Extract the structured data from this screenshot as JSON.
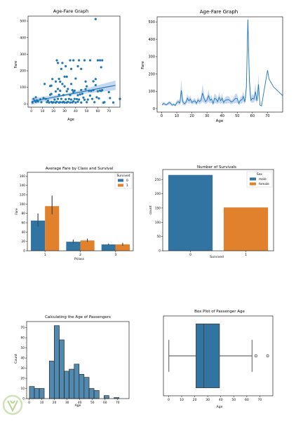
{
  "colors": {
    "blue": "#1f77b4",
    "blue_fill": "#3274a1",
    "orange": "#e1812c",
    "ci": "#aec7e8"
  },
  "logo": {
    "name": "watermark-logo",
    "text": ""
  },
  "chart_data": [
    {
      "type": "scatter",
      "title": "Age-Fare Graph",
      "xlabel": "Age",
      "ylabel": "Fare",
      "xlim": [
        -3,
        80
      ],
      "ylim": [
        -20,
        530
      ],
      "xticks": [
        0,
        10,
        20,
        30,
        40,
        50,
        60,
        70
      ],
      "yticks": [
        0,
        100,
        200,
        300,
        400,
        500
      ],
      "regression": {
        "x": [
          0,
          76
        ],
        "y": [
          14,
          112
        ]
      },
      "points": [
        [
          1,
          8
        ],
        [
          2,
          30
        ],
        [
          3,
          18
        ],
        [
          4,
          12
        ],
        [
          4,
          40
        ],
        [
          5,
          22
        ],
        [
          6,
          15
        ],
        [
          8,
          27
        ],
        [
          9,
          10
        ],
        [
          11,
          35
        ],
        [
          12,
          120
        ],
        [
          13,
          30
        ],
        [
          14,
          10
        ],
        [
          15,
          20
        ],
        [
          16,
          8
        ],
        [
          17,
          55
        ],
        [
          18,
          12
        ],
        [
          18,
          60
        ],
        [
          19,
          7
        ],
        [
          19,
          150
        ],
        [
          20,
          10
        ],
        [
          21,
          26
        ],
        [
          22,
          8
        ],
        [
          22,
          75
        ],
        [
          23,
          13
        ],
        [
          23,
          263
        ],
        [
          24,
          30
        ],
        [
          24,
          90
        ],
        [
          25,
          8
        ],
        [
          25,
          55
        ],
        [
          25,
          151
        ],
        [
          26,
          10
        ],
        [
          26,
          79
        ],
        [
          27,
          30
        ],
        [
          27,
          211
        ],
        [
          28,
          9
        ],
        [
          28,
          120
        ],
        [
          29,
          13
        ],
        [
          29,
          53
        ],
        [
          30,
          8
        ],
        [
          30,
          106
        ],
        [
          31,
          27
        ],
        [
          31,
          227
        ],
        [
          32,
          8
        ],
        [
          32,
          76
        ],
        [
          33,
          12
        ],
        [
          33,
          90
        ],
        [
          34,
          30
        ],
        [
          35,
          8
        ],
        [
          35,
          53
        ],
        [
          35,
          263
        ],
        [
          36,
          26
        ],
        [
          36,
          120
        ],
        [
          37,
          9
        ],
        [
          37,
          83
        ],
        [
          38,
          15
        ],
        [
          38,
          71
        ],
        [
          39,
          30
        ],
        [
          39,
          80
        ],
        [
          40,
          8
        ],
        [
          40,
          153
        ],
        [
          41,
          29
        ],
        [
          42,
          13
        ],
        [
          42,
          52
        ],
        [
          43,
          26
        ],
        [
          44,
          57
        ],
        [
          45,
          8
        ],
        [
          45,
          84
        ],
        [
          46,
          61
        ],
        [
          47,
          38
        ],
        [
          48,
          25
        ],
        [
          48,
          263
        ],
        [
          49,
          89
        ],
        [
          50,
          10
        ],
        [
          50,
          106
        ],
        [
          51,
          26
        ],
        [
          52,
          79
        ],
        [
          53,
          50
        ],
        [
          54,
          78
        ],
        [
          55,
          30
        ],
        [
          56,
          83
        ],
        [
          57,
          10
        ],
        [
          58,
          113
        ],
        [
          58,
          150
        ],
        [
          59,
          40
        ],
        [
          60,
          76
        ],
        [
          61,
          33
        ],
        [
          62,
          80
        ],
        [
          62,
          263
        ],
        [
          63,
          78
        ],
        [
          64,
          263
        ],
        [
          65,
          7
        ],
        [
          66,
          10
        ],
        [
          70,
          71
        ],
        [
          71,
          35
        ],
        [
          74,
          8
        ],
        [
          80,
          30
        ],
        [
          58,
          512
        ],
        [
          60,
          263
        ],
        [
          63,
          221
        ],
        [
          43,
          263
        ],
        [
          38,
          263
        ],
        [
          53,
          263
        ],
        [
          17,
          108
        ],
        [
          28,
          247
        ],
        [
          22,
          135
        ],
        [
          49,
          135
        ],
        [
          56,
          136
        ],
        [
          45,
          211
        ],
        [
          64,
          83
        ],
        [
          18,
          110
        ],
        [
          30,
          164
        ],
        [
          36,
          211
        ],
        [
          24,
          247
        ],
        [
          42,
          227
        ],
        [
          32,
          164
        ],
        [
          26,
          134
        ]
      ]
    },
    {
      "type": "line",
      "title": "Age-Fare Graph",
      "xlabel": "Age",
      "ylabel": "Fare",
      "xlim": [
        -3,
        80
      ],
      "ylim": [
        -20,
        530
      ],
      "xticks": [
        0,
        10,
        20,
        30,
        40,
        50,
        60,
        70
      ],
      "yticks": [
        0,
        100,
        200,
        300,
        400,
        500
      ],
      "x": [
        0.4,
        1,
        2,
        3,
        4,
        5,
        6,
        7,
        8,
        9,
        10,
        11,
        12,
        13,
        14,
        15,
        16,
        17,
        18,
        19,
        20,
        21,
        22,
        23,
        24,
        25,
        26,
        27,
        28,
        29,
        30,
        31,
        32,
        33,
        34,
        35,
        36,
        37,
        38,
        39,
        40,
        41,
        42,
        43,
        44,
        45,
        46,
        47,
        48,
        49,
        50,
        51,
        52,
        53,
        54,
        55,
        56,
        57,
        58,
        59,
        60,
        61,
        62,
        63,
        64,
        65,
        66,
        70,
        71,
        74,
        80
      ],
      "y": [
        20,
        30,
        27,
        22,
        28,
        35,
        30,
        20,
        25,
        18,
        35,
        40,
        32,
        105,
        40,
        28,
        35,
        60,
        45,
        55,
        35,
        42,
        45,
        30,
        50,
        40,
        48,
        90,
        60,
        40,
        50,
        75,
        48,
        55,
        30,
        60,
        55,
        40,
        65,
        45,
        60,
        35,
        48,
        50,
        52,
        48,
        38,
        42,
        52,
        60,
        58,
        30,
        48,
        50,
        70,
        38,
        120,
        515,
        160,
        48,
        60,
        55,
        98,
        45,
        140,
        20,
        15,
        222,
        170,
        125,
        75
      ],
      "ci": [
        0,
        10,
        8,
        6,
        8,
        10,
        10,
        6,
        8,
        6,
        12,
        14,
        12,
        60,
        18,
        10,
        14,
        24,
        18,
        22,
        12,
        14,
        16,
        10,
        18,
        14,
        18,
        50,
        26,
        14,
        20,
        35,
        18,
        22,
        10,
        28,
        24,
        14,
        30,
        18,
        28,
        12,
        18,
        22,
        20,
        18,
        12,
        14,
        20,
        28,
        24,
        10,
        18,
        22,
        30,
        12,
        50,
        0,
        80,
        14,
        26,
        20,
        50,
        14,
        60,
        0,
        0,
        0,
        0,
        0,
        0
      ]
    },
    {
      "type": "bar",
      "title": "Average Fare by Class and Survival",
      "xlabel": "Pclass",
      "ylabel": "Fare",
      "categories": [
        "1",
        "2",
        "3"
      ],
      "ylim": [
        0,
        168
      ],
      "yticks": [
        0,
        20,
        40,
        60,
        80,
        100,
        120,
        140,
        160
      ],
      "legend": {
        "title": "Survived",
        "position": "top-right"
      },
      "series": [
        {
          "name": "0",
          "values": [
            64.7,
            19.4,
            13.7
          ],
          "err": [
            [
              52,
              80
            ],
            [
              16,
              24
            ],
            [
              12,
              15.5
            ]
          ]
        },
        {
          "name": "1",
          "values": [
            95.6,
            22.1,
            13.7
          ],
          "err": [
            [
              78,
              118
            ],
            [
              19,
              26
            ],
            [
              11,
              17
            ]
          ]
        }
      ]
    },
    {
      "type": "bar",
      "title": "Number of Survivals",
      "xlabel": "Survived",
      "ylabel": "count",
      "categories": [
        "0",
        "1"
      ],
      "ylim": [
        0,
        285
      ],
      "yticks": [
        0,
        50,
        100,
        150,
        200,
        250
      ],
      "legend": {
        "title": "Sex",
        "position": "top-right"
      },
      "series": [
        {
          "name": "male",
          "values": [
            266,
            0
          ]
        },
        {
          "name": "female",
          "values": [
            0,
            152
          ]
        }
      ]
    },
    {
      "type": "bar",
      "title": "Calculating the Age of Passengers",
      "xlabel": "Age",
      "ylabel": "Count",
      "xlim": [
        -2,
        79
      ],
      "ylim": [
        0,
        76
      ],
      "xticks": [
        0,
        10,
        20,
        30,
        40,
        50,
        60,
        70
      ],
      "yticks": [
        0,
        10,
        20,
        30,
        40,
        50,
        60,
        70
      ],
      "bin_edges": [
        0.17,
        4.1,
        8.0,
        11.9,
        15.9,
        19.8,
        23.8,
        27.7,
        31.6,
        35.6,
        39.5,
        43.4,
        47.4,
        51.3,
        55.3,
        59.2,
        63.1,
        67.1,
        71.0,
        74.9,
        78.9
      ],
      "counts": [
        12,
        10,
        10,
        0,
        37,
        72,
        58,
        27,
        29,
        34,
        24,
        21,
        10,
        8,
        0,
        3,
        0,
        1,
        0,
        0
      ]
    },
    {
      "type": "box",
      "title": "Box Plot of Passenger Age",
      "xlabel": "Age",
      "xlim": [
        -4,
        80
      ],
      "xticks": [
        0,
        10,
        20,
        30,
        40,
        50,
        60,
        70
      ],
      "min": 0.17,
      "q1": 21,
      "median": 27,
      "q3": 39,
      "max": 64,
      "outliers": [
        67,
        76
      ]
    }
  ]
}
